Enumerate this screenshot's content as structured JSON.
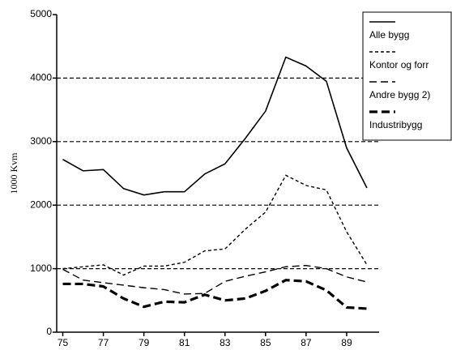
{
  "chart_data": {
    "type": "line",
    "y_label": "1000 Kvm",
    "x": [
      75,
      76,
      77,
      78,
      79,
      80,
      81,
      82,
      83,
      84,
      85,
      86,
      87,
      88,
      89,
      90
    ],
    "series": [
      {
        "name": "Alle bygg",
        "color": "#000000",
        "dash": "solid",
        "values": [
          2720,
          2540,
          2560,
          2260,
          2160,
          2210,
          2210,
          2490,
          2650,
          3050,
          3480,
          4330,
          4190,
          3950,
          2900,
          2270
        ]
      },
      {
        "name": "Kontor og forr",
        "color": "#000000",
        "dash": "short",
        "values": [
          1000,
          1030,
          1060,
          900,
          1040,
          1040,
          1100,
          1280,
          1310,
          1620,
          1890,
          2470,
          2310,
          2240,
          1580,
          1060
        ]
      },
      {
        "name": "Andre bygg 2)",
        "color": "#000000",
        "dash": "long",
        "values": [
          990,
          820,
          780,
          740,
          700,
          670,
          600,
          610,
          800,
          880,
          950,
          1030,
          1050,
          1000,
          870,
          790
        ]
      },
      {
        "name": "Industribygg",
        "color": "#000000",
        "dash": "thick",
        "values": [
          760,
          760,
          720,
          530,
          400,
          480,
          470,
          590,
          500,
          530,
          650,
          820,
          800,
          660,
          390,
          370
        ]
      }
    ],
    "xlim": [
      74.7,
      90.6
    ],
    "xticks": [
      75,
      77,
      79,
      81,
      83,
      85,
      87,
      89
    ],
    "ylim": [
      0,
      5000
    ],
    "yticks": [
      0,
      1000,
      2000,
      3000,
      4000,
      5000
    ],
    "grid": true,
    "legend": "top-right"
  }
}
